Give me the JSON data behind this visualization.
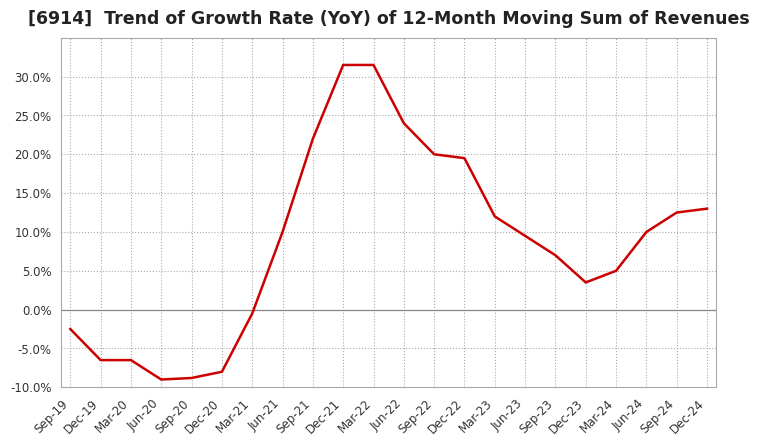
{
  "title": "[6914]  Trend of Growth Rate (YoY) of 12-Month Moving Sum of Revenues",
  "title_fontsize": 12.5,
  "line_color": "#cc0000",
  "background_color": "#ffffff",
  "grid_color": "#aaaaaa",
  "zero_line_color": "#888888",
  "x_labels": [
    "Sep-19",
    "Dec-19",
    "Mar-20",
    "Jun-20",
    "Sep-20",
    "Dec-20",
    "Mar-21",
    "Jun-21",
    "Sep-21",
    "Dec-21",
    "Mar-22",
    "Jun-22",
    "Sep-22",
    "Dec-22",
    "Mar-23",
    "Jun-23",
    "Sep-23",
    "Dec-23",
    "Mar-24",
    "Jun-24",
    "Sep-24",
    "Dec-24"
  ],
  "y_values": [
    -2.5,
    -6.5,
    -6.5,
    -9.0,
    -8.8,
    -8.0,
    -0.5,
    10.0,
    22.0,
    31.5,
    31.5,
    24.0,
    20.0,
    19.5,
    12.0,
    9.5,
    7.0,
    3.5,
    5.0,
    10.0,
    12.5,
    13.0
  ],
  "ylim": [
    -10.0,
    35.0
  ],
  "yticks": [
    -10.0,
    -5.0,
    0.0,
    5.0,
    10.0,
    15.0,
    20.0,
    25.0,
    30.0
  ],
  "line_width": 1.8
}
